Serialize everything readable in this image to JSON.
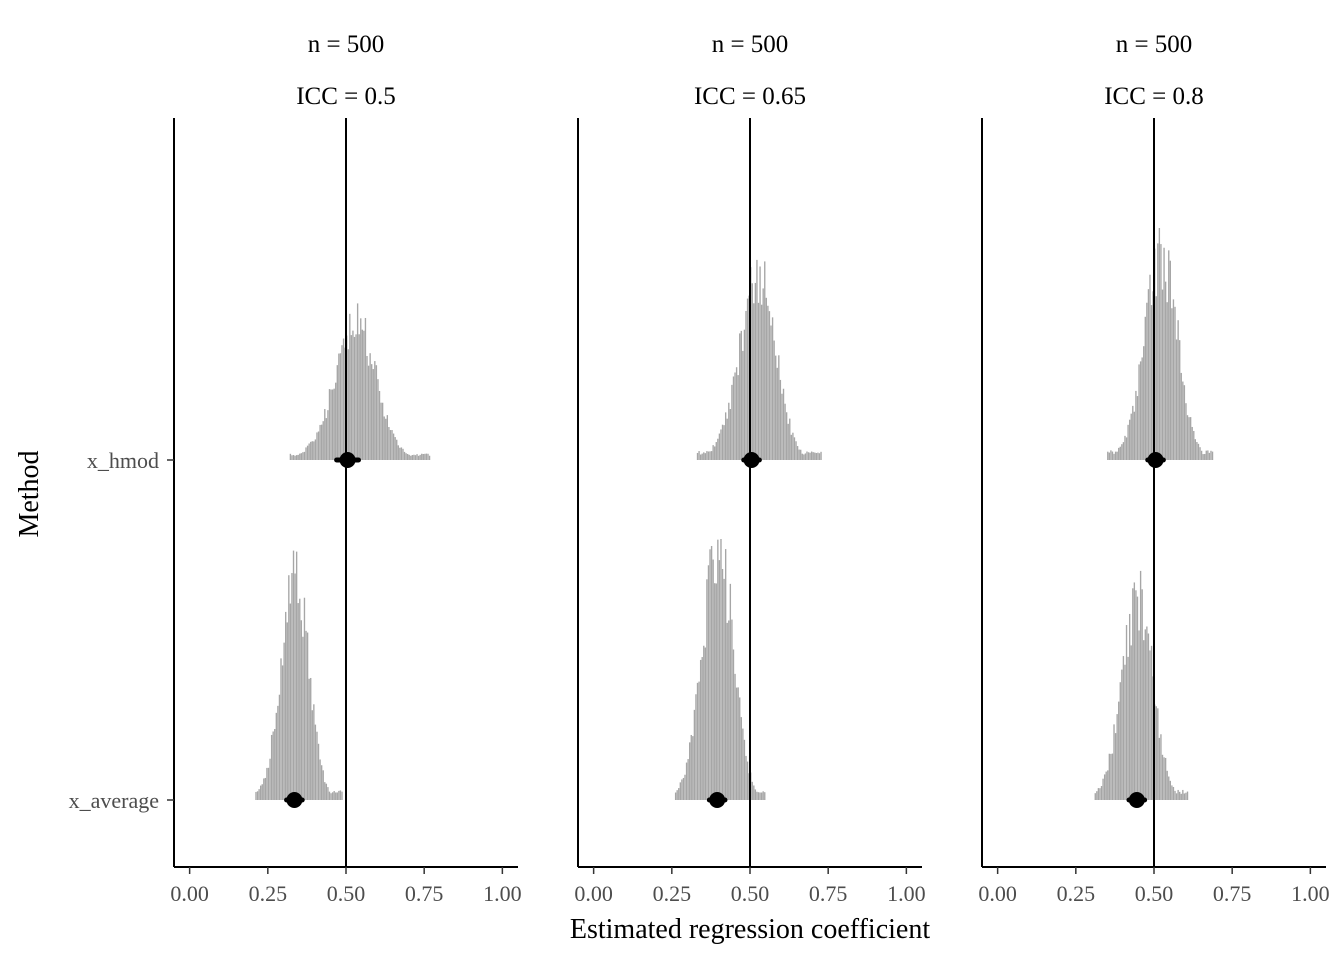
{
  "chart_data": {
    "type": "histogram-interval",
    "xlabel": "Estimated regression coefficient",
    "ylabel": "Method",
    "xlim": [
      -0.05,
      1.05
    ],
    "x_ticks": [
      0,
      0.25,
      0.5,
      0.75,
      1
    ],
    "x_tick_labels": [
      "0.00",
      "0.25",
      "0.50",
      "0.75",
      "1.00"
    ],
    "categories": [
      "x_hmod",
      "x_average"
    ],
    "reference_x": 0.5,
    "grid": false,
    "colors": {
      "hist": "#a6a6a6",
      "point": "#000000",
      "axis": "#000000"
    },
    "panels": [
      {
        "strip": [
          "n = 500",
          "ICC = 0.5"
        ],
        "series": [
          {
            "category": "x_hmod",
            "point": 0.505,
            "interval": [
              0.47,
              0.54
            ],
            "range": [
              0.32,
              0.77
            ],
            "mean": 0.515,
            "sd": 0.07,
            "skew": 0.3,
            "peak": 0.54
          },
          {
            "category": "x_average",
            "point": 0.335,
            "interval": [
              0.31,
              0.36
            ],
            "range": [
              0.21,
              0.49
            ],
            "mean": 0.33,
            "sd": 0.045,
            "skew": 0.2,
            "peak": 0.86
          }
        ]
      },
      {
        "strip": [
          "n = 500",
          "ICC = 0.65"
        ],
        "series": [
          {
            "category": "x_hmod",
            "point": 0.505,
            "interval": [
              0.48,
              0.53
            ],
            "range": [
              0.33,
              0.73
            ],
            "mean": 0.51,
            "sd": 0.06,
            "skew": 0.3,
            "peak": 0.69
          },
          {
            "category": "x_average",
            "point": 0.395,
            "interval": [
              0.37,
              0.42
            ],
            "range": [
              0.26,
              0.55
            ],
            "mean": 0.39,
            "sd": 0.05,
            "skew": 0.2,
            "peak": 0.9
          }
        ]
      },
      {
        "strip": [
          "n = 500",
          "ICC = 0.8"
        ],
        "series": [
          {
            "category": "x_hmod",
            "point": 0.505,
            "interval": [
              0.48,
              0.53
            ],
            "range": [
              0.35,
              0.69
            ],
            "mean": 0.51,
            "sd": 0.055,
            "skew": 0.3,
            "peak": 0.8
          },
          {
            "category": "x_average",
            "point": 0.445,
            "interval": [
              0.42,
              0.47
            ],
            "range": [
              0.31,
              0.61
            ],
            "mean": 0.44,
            "sd": 0.05,
            "skew": 0.2,
            "peak": 0.79
          }
        ]
      }
    ]
  }
}
